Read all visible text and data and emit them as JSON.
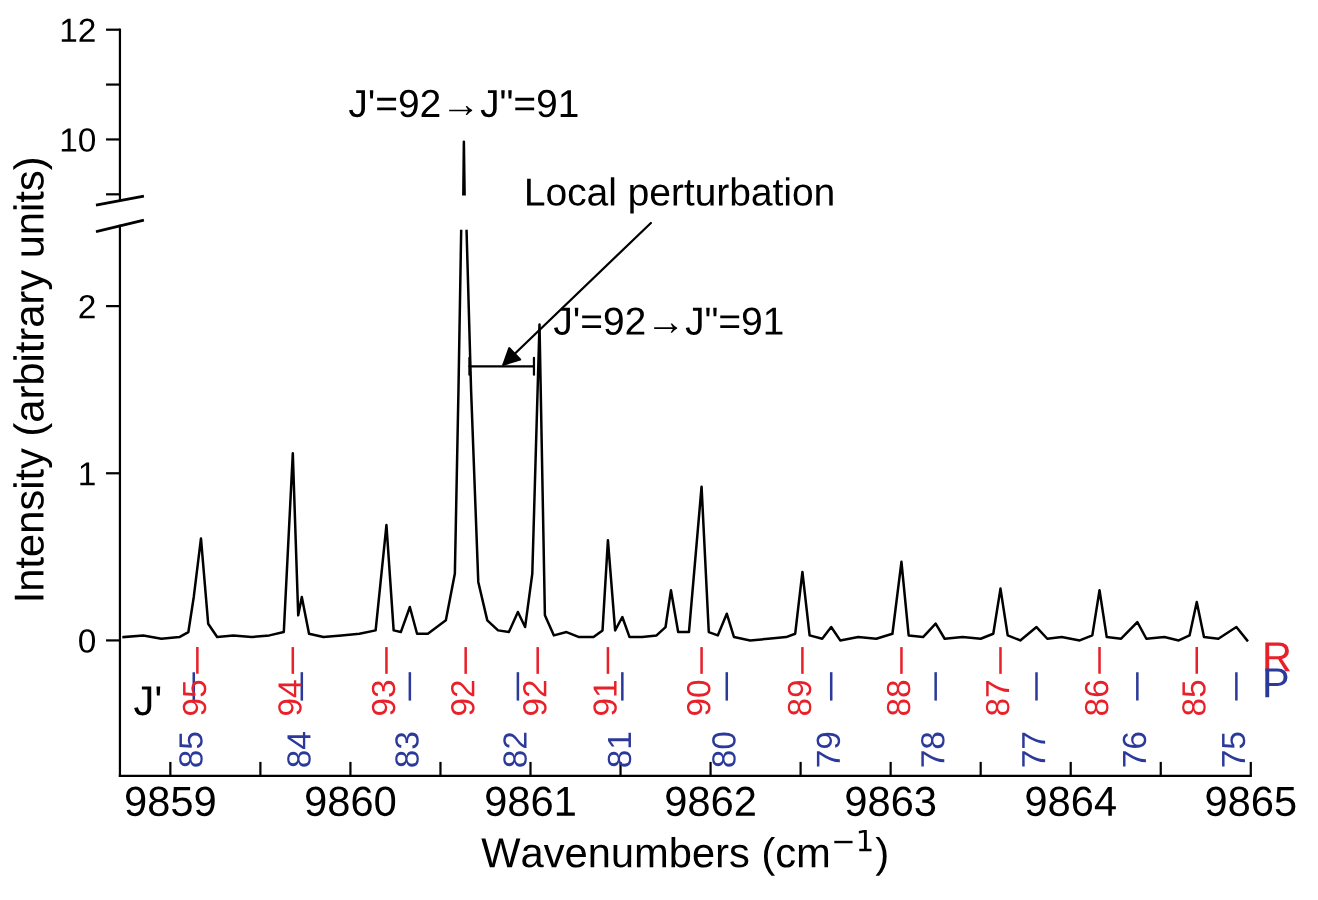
{
  "chart_data": [
    {
      "type": "line",
      "xlim": [
        9858.72,
        9865
      ],
      "ylim": [
        8.9,
        12
      ],
      "yticks": [
        {
          "value": 9,
          "label": null
        },
        10,
        {
          "value": 11,
          "label": null
        },
        12
      ],
      "tick_labels": "y",
      "annotations": [
        {
          "text": "J'=92→J\"=91",
          "x": 9860.63,
          "y": 9.96
        }
      ],
      "series": [
        {
          "color": "#000000",
          "x": [
            9860.627,
            9860.63,
            9860.634
          ],
          "values": [
            9.0,
            9.96,
            9.0
          ]
        }
      ]
    },
    {
      "type": "line",
      "xlim": [
        9858.72,
        9865
      ],
      "ylim": [
        -0.81,
        2.48
      ],
      "yticks": [
        0,
        1,
        2
      ],
      "xticks": [
        9859,
        {
          "value": 9859.5,
          "label": null
        },
        9860,
        {
          "value": 9860.5,
          "label": null
        },
        9861,
        {
          "value": 9861.5,
          "label": null
        },
        9862,
        {
          "value": 9862.5,
          "label": null
        },
        9863,
        {
          "value": 9863.5,
          "label": null
        },
        9864,
        {
          "value": 9864.5,
          "label": null
        },
        9865
      ],
      "xlabel": "Wavenumbers (cm$^{−1}$)",
      "ylabel": "Intensity (arbitrary units)",
      "annotations": [
        {
          "text": "J'=92→J\"=91",
          "x": 9861.05,
          "y": 1.89
        },
        {
          "text": "Local perturbation",
          "x": 9860.84,
          "y": 1.64
        },
        "J'",
        {
          "text": "95",
          "x": 9859.15,
          "y": -0.2
        },
        {
          "text": "94",
          "x": 9859.68,
          "y": -0.2
        },
        {
          "text": "93",
          "x": 9860.2,
          "y": -0.2
        },
        {
          "text": "92",
          "x": 9860.64,
          "y": -0.2
        },
        {
          "text": "92",
          "x": 9861.04,
          "y": -0.2
        },
        {
          "text": "91",
          "x": 9861.43,
          "y": -0.2
        },
        {
          "text": "90",
          "x": 9861.95,
          "y": -0.2
        },
        {
          "text": "89",
          "x": 9862.51,
          "y": -0.2
        },
        {
          "text": "88",
          "x": 9863.06,
          "y": -0.2
        },
        {
          "text": "87",
          "x": 9863.61,
          "y": -0.2
        },
        {
          "text": "86",
          "x": 9864.16,
          "y": -0.2
        },
        {
          "text": "85",
          "x": 9864.7,
          "y": -0.2
        },
        {
          "text": "85",
          "x": 9859.13,
          "y": -0.36
        },
        {
          "text": "84",
          "x": 9859.73,
          "y": -0.36
        },
        {
          "text": "83",
          "x": 9860.33,
          "y": -0.36
        },
        {
          "text": "82",
          "x": 9860.93,
          "y": -0.36
        },
        {
          "text": "81",
          "x": 9861.51,
          "y": -0.36
        },
        {
          "text": "80",
          "x": 9862.09,
          "y": -0.36
        },
        {
          "text": "79",
          "x": 9862.67,
          "y": -0.36
        },
        {
          "text": "78",
          "x": 9863.25,
          "y": -0.36
        },
        {
          "text": "77",
          "x": 9863.81,
          "y": -0.36
        },
        {
          "text": "76",
          "x": 9864.37,
          "y": -0.36
        },
        {
          "text": "75",
          "x": 9864.92,
          "y": -0.36
        }
      ],
      "series": [
        {
          "color": "#000000",
          "x": [
            9858.74,
            9858.85,
            9858.95,
            9859.05,
            9859.1,
            9859.13,
            9859.17,
            9859.21,
            9859.26,
            9859.35,
            9859.45,
            9859.55,
            9859.63,
            9859.68,
            9859.71,
            9859.73,
            9859.77,
            9859.85,
            9859.95,
            9860.05,
            9860.14,
            9860.2,
            9860.24,
            9860.28,
            9860.33,
            9860.37,
            9860.43,
            9860.48,
            9860.53,
            9860.58,
            9860.6,
            9860.615,
            9860.63,
            9860.645,
            9860.67,
            9860.71,
            9860.76,
            9860.82,
            9860.88,
            9860.93,
            9860.97,
            9861.01,
            9861.05,
            9861.08,
            9861.13,
            9861.2,
            9861.27,
            9861.35,
            9861.4,
            9861.43,
            9861.47,
            9861.51,
            9861.55,
            9861.62,
            9861.7,
            9861.75,
            9861.78,
            9861.82,
            9861.88,
            9861.95,
            9861.99,
            9862.04,
            9862.09,
            9862.13,
            9862.22,
            9862.32,
            9862.42,
            9862.47,
            9862.51,
            9862.55,
            9862.62,
            9862.67,
            9862.72,
            9862.82,
            9862.92,
            9863.01,
            9863.06,
            9863.1,
            9863.18,
            9863.25,
            9863.3,
            9863.4,
            9863.5,
            9863.57,
            9863.61,
            9863.65,
            9863.72,
            9863.81,
            9863.87,
            9863.95,
            9864.05,
            9864.12,
            9864.16,
            9864.2,
            9864.28,
            9864.37,
            9864.42,
            9864.52,
            9864.6,
            9864.66,
            9864.7,
            9864.74,
            9864.82,
            9864.92,
            9864.98
          ],
          "values": [
            0.02,
            0.03,
            0.01,
            0.02,
            0.05,
            0.26,
            0.61,
            0.1,
            0.02,
            0.03,
            0.02,
            0.03,
            0.05,
            1.12,
            0.15,
            0.26,
            0.04,
            0.02,
            0.03,
            0.04,
            0.06,
            0.69,
            0.06,
            0.05,
            0.2,
            0.04,
            0.04,
            0.08,
            0.12,
            0.4,
            1.5,
            2.45,
            null,
            2.45,
            1.5,
            0.35,
            0.12,
            0.06,
            0.05,
            0.17,
            0.08,
            0.4,
            1.89,
            0.15,
            0.03,
            0.05,
            0.02,
            0.02,
            0.06,
            0.6,
            0.06,
            0.14,
            0.02,
            0.02,
            0.03,
            0.08,
            0.3,
            0.05,
            0.05,
            0.92,
            0.05,
            0.03,
            0.16,
            0.02,
            0.0,
            0.01,
            0.02,
            0.04,
            0.41,
            0.03,
            0.01,
            0.08,
            0.0,
            0.02,
            0.01,
            0.04,
            0.47,
            0.03,
            0.02,
            0.1,
            0.01,
            0.02,
            0.01,
            0.04,
            0.31,
            0.03,
            0.0,
            0.08,
            0.01,
            0.02,
            0.0,
            0.03,
            0.3,
            0.02,
            0.01,
            0.11,
            0.01,
            0.02,
            0.0,
            0.03,
            0.23,
            0.02,
            0.01,
            0.08,
            0.0
          ]
        },
        {
          "type": "bar",
          "name": "R",
          "color": "#e8202a",
          "x": [
            9859.15,
            9859.68,
            9860.2,
            9860.64,
            9861.04,
            9861.43,
            9861.95,
            9862.51,
            9863.06,
            9863.61,
            9864.16,
            9864.7
          ],
          "base": [
            -0.2,
            -0.2,
            -0.2,
            -0.2,
            -0.2,
            -0.2,
            -0.2,
            -0.2,
            -0.2,
            -0.2,
            -0.2,
            -0.2
          ],
          "values": [
            0.16,
            0.16,
            0.16,
            0.16,
            0.16,
            0.16,
            0.16,
            0.16,
            0.16,
            0.16,
            0.16,
            0.16
          ]
        },
        {
          "type": "bar",
          "name": "P",
          "color": "#2b3a9a",
          "x": [
            9859.13,
            9859.73,
            9860.33,
            9860.93,
            9861.51,
            9862.09,
            9862.67,
            9863.25,
            9863.81,
            9864.37,
            9864.92
          ],
          "base": [
            -0.36,
            -0.36,
            -0.36,
            -0.36,
            -0.36,
            -0.36,
            -0.36,
            -0.36,
            -0.36,
            -0.36,
            -0.36
          ],
          "values": [
            0.17,
            0.17,
            0.17,
            0.17,
            0.17,
            0.17,
            0.17,
            0.17,
            0.17,
            0.17,
            0.17
          ]
        }
      ]
    }
  ]
}
